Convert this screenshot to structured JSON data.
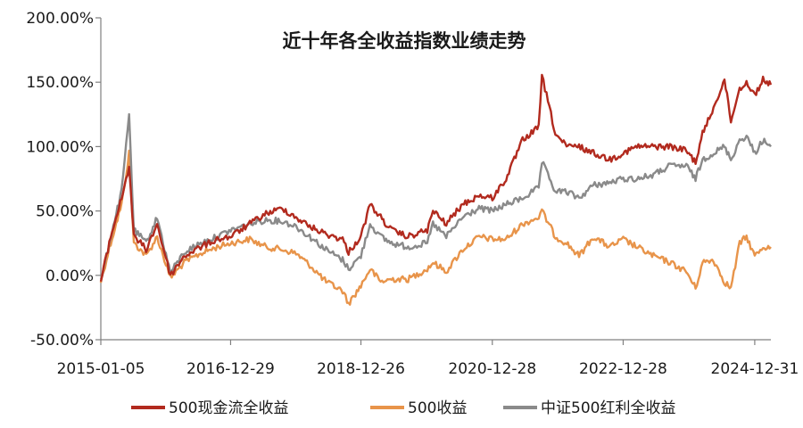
{
  "chart_data": {
    "type": "line",
    "title": "近十年各全收益指数业绩走势",
    "xlabel": "",
    "ylabel": "",
    "x_ticks": [
      "2015-01-05",
      "2016-12-29",
      "2018-12-26",
      "2020-12-28",
      "2022-12-28",
      "2024-12-31"
    ],
    "x_range": [
      "2015-01-05",
      "2025-03-31"
    ],
    "y_ticks": [
      "200.00%",
      "150.00%",
      "100.00%",
      "50.00%",
      "0.00%",
      "-50.00%"
    ],
    "y_tick_values": [
      200,
      150,
      100,
      50,
      0,
      -50
    ],
    "ylim": [
      -50,
      200
    ],
    "y_unit": "%",
    "grid": false,
    "legend_position": "bottom",
    "x": [
      "2015-01-05",
      "2015-03-01",
      "2015-05-01",
      "2015-06-12",
      "2015-07-08",
      "2015-08-15",
      "2015-09-15",
      "2015-11-15",
      "2016-01-28",
      "2016-04-15",
      "2016-07-15",
      "2016-10-15",
      "2016-12-29",
      "2017-04-15",
      "2017-07-15",
      "2017-10-15",
      "2017-12-29",
      "2018-03-15",
      "2018-06-15",
      "2018-09-15",
      "2018-10-18",
      "2018-12-26",
      "2019-02-15",
      "2019-04-15",
      "2019-06-15",
      "2019-09-15",
      "2019-12-31",
      "2020-02-01",
      "2020-04-15",
      "2020-07-15",
      "2020-10-15",
      "2020-12-28",
      "2021-03-15",
      "2021-06-15",
      "2021-09-13",
      "2021-10-01",
      "2021-12-15",
      "2022-02-15",
      "2022-04-26",
      "2022-07-15",
      "2022-10-15",
      "2022-12-28",
      "2023-03-15",
      "2023-06-15",
      "2023-09-15",
      "2023-12-15",
      "2024-02-05",
      "2024-03-15",
      "2024-05-15",
      "2024-07-15",
      "2024-08-20",
      "2024-10-08",
      "2024-11-15",
      "2024-12-31",
      "2025-02-15",
      "2025-03-31"
    ],
    "series": [
      {
        "name": "500现金流全收益",
        "color": "#b22a1e",
        "values": [
          -5,
          30,
          60,
          85,
          30,
          25,
          20,
          40,
          0,
          15,
          22,
          28,
          30,
          40,
          48,
          52,
          45,
          38,
          32,
          28,
          18,
          30,
          55,
          45,
          35,
          30,
          35,
          50,
          40,
          55,
          62,
          60,
          75,
          105,
          115,
          155,
          110,
          100,
          100,
          95,
          90,
          95,
          100,
          100,
          100,
          97,
          88,
          110,
          130,
          152,
          120,
          145,
          150,
          140,
          152,
          148
        ]
      },
      {
        "name": "500收益",
        "color": "#e8944a",
        "values": [
          -5,
          25,
          55,
          95,
          25,
          20,
          15,
          30,
          -2,
          10,
          17,
          22,
          25,
          28,
          22,
          20,
          17,
          8,
          -5,
          -12,
          -22,
          -8,
          5,
          -5,
          -3,
          -3,
          5,
          10,
          3,
          20,
          30,
          28,
          28,
          40,
          45,
          50,
          30,
          25,
          15,
          30,
          22,
          28,
          22,
          15,
          10,
          3,
          -10,
          10,
          12,
          -5,
          -10,
          25,
          30,
          15,
          22,
          22
        ]
      },
      {
        "name": "中证500红利全收益",
        "color": "#8a8a8a",
        "values": [
          -5,
          30,
          65,
          125,
          35,
          30,
          25,
          45,
          2,
          18,
          25,
          30,
          35,
          40,
          43,
          42,
          38,
          30,
          20,
          12,
          5,
          15,
          40,
          30,
          25,
          22,
          25,
          40,
          30,
          45,
          52,
          50,
          55,
          60,
          68,
          88,
          65,
          65,
          60,
          70,
          72,
          75,
          75,
          78,
          85,
          85,
          75,
          90,
          95,
          100,
          90,
          105,
          108,
          95,
          105,
          100
        ]
      }
    ]
  }
}
